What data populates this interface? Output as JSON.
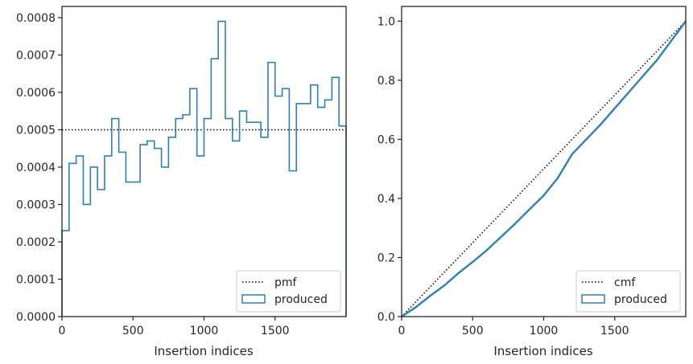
{
  "chart_data": [
    {
      "type": "histogram",
      "xlabel": "Insertion indices",
      "ylabel": "",
      "xlim": [
        0,
        2000
      ],
      "ylim": [
        0,
        0.00083
      ],
      "x_ticks": [
        "0",
        "500",
        "1000",
        "1500"
      ],
      "x_tick_values": [
        0,
        500,
        1000,
        1500
      ],
      "y_ticks": [
        "0.0000",
        "0.0001",
        "0.0002",
        "0.0003",
        "0.0004",
        "0.0005",
        "0.0006",
        "0.0007",
        "0.0008"
      ],
      "y_tick_values": [
        0,
        0.0001,
        0.0002,
        0.0003,
        0.0004,
        0.0005,
        0.0006,
        0.0007,
        0.0008
      ],
      "bin_width": 50,
      "produced": [
        0.00023,
        0.00041,
        0.00043,
        0.0003,
        0.0004,
        0.00034,
        0.00043,
        0.00053,
        0.00044,
        0.00036,
        0.00036,
        0.00046,
        0.00047,
        0.00045,
        0.0004,
        0.00048,
        0.00053,
        0.00054,
        0.00061,
        0.00043,
        0.00053,
        0.00069,
        0.00079,
        0.00053,
        0.00047,
        0.00055,
        0.00052,
        0.00052,
        0.00048,
        0.00068,
        0.00059,
        0.00061,
        0.00039,
        0.00057,
        0.00057,
        0.00062,
        0.00056,
        0.00058,
        0.00064,
        0.00051
      ],
      "pmf_value": 0.0005,
      "legend": {
        "position": "lower-right",
        "entries": [
          "pmf",
          "produced"
        ]
      },
      "series_colors": {
        "pmf": "#000000",
        "produced": "#2e7fb4"
      }
    },
    {
      "type": "line",
      "xlabel": "Insertion indices",
      "ylabel": "",
      "xlim": [
        0,
        2000
      ],
      "ylim": [
        0,
        1.05
      ],
      "x_ticks": [
        "0",
        "500",
        "1000",
        "1500"
      ],
      "x_tick_values": [
        0,
        500,
        1000,
        1500
      ],
      "y_ticks": [
        "0.0",
        "0.2",
        "0.4",
        "0.6",
        "0.8",
        "1.0"
      ],
      "y_tick_values": [
        0,
        0.2,
        0.4,
        0.6,
        0.8,
        1.0
      ],
      "cmf": {
        "x": [
          0,
          2000
        ],
        "y": [
          0,
          1.0
        ]
      },
      "produced": {
        "x": [
          0,
          100,
          200,
          300,
          400,
          500,
          600,
          700,
          800,
          900,
          1000,
          1100,
          1200,
          1300,
          1400,
          1500,
          1600,
          1700,
          1800,
          1900,
          2000
        ],
        "y": [
          0,
          0.032,
          0.07,
          0.105,
          0.147,
          0.185,
          0.225,
          0.27,
          0.315,
          0.363,
          0.41,
          0.47,
          0.55,
          0.6,
          0.65,
          0.705,
          0.76,
          0.815,
          0.87,
          0.935,
          1.0
        ]
      },
      "legend": {
        "position": "lower-right",
        "entries": [
          "cmf",
          "produced"
        ]
      },
      "series_colors": {
        "cmf": "#000000",
        "produced": "#2e7fb4"
      }
    }
  ]
}
